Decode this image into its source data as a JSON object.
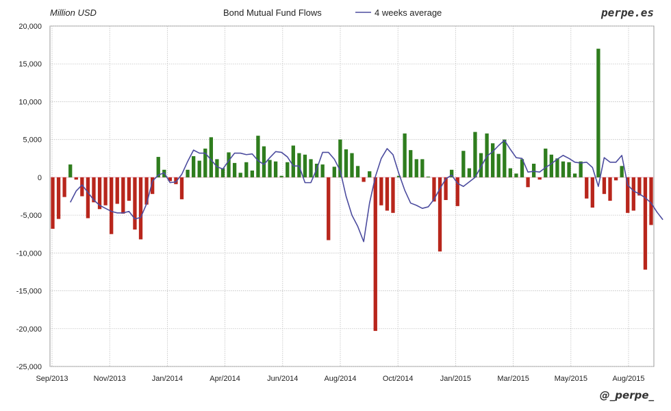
{
  "header": {
    "unit_label": "Million USD",
    "title": "Bond Mutual Fund Flows",
    "legend_label": "4 weeks average",
    "brand": "perpe.es",
    "handle": "@_perpe_"
  },
  "colors": {
    "positive": "#2f7d1e",
    "negative": "#b8261c",
    "line": "#4b4b9e",
    "grid": "#bfbfbf"
  },
  "chart_data": {
    "type": "bar",
    "title": "Bond Mutual Fund Flows",
    "ylabel": "Million USD",
    "ylim": [
      -25000,
      20000
    ],
    "y_ticks": [
      "20,000",
      "15,000",
      "10,000",
      "5,000",
      "0",
      "-5,000",
      "-10,000",
      "-15,000",
      "-20,000",
      "-25,000"
    ],
    "x_ticks": [
      "Sep/2013",
      "Nov/2013",
      "Jan/2014",
      "Apr/2014",
      "Jun/2014",
      "Aug/2014",
      "Oct/2014",
      "Jan/2015",
      "Mar/2015",
      "May/2015",
      "Aug/2015"
    ],
    "grid": true,
    "legend": "top",
    "series": [
      {
        "name": "Bond Mutual Fund Flows",
        "type": "bar",
        "values": [
          -6800,
          -5500,
          -2600,
          1700,
          -300,
          -2500,
          -5400,
          -3300,
          -4200,
          -3700,
          -7500,
          -3500,
          -4800,
          -3100,
          -6900,
          -8200,
          -3600,
          -2200,
          2700,
          1000,
          -500,
          -900,
          -2900,
          1000,
          2800,
          2200,
          3800,
          5300,
          2400,
          1200,
          3300,
          1900,
          600,
          2000,
          900,
          5500,
          4100,
          2300,
          2100,
          200,
          2000,
          4200,
          3200,
          3000,
          2400,
          1800,
          1700,
          -8300,
          1400,
          5000,
          3700,
          3200,
          1500,
          -600,
          800,
          -20300,
          -3700,
          -4400,
          -4700,
          200,
          5800,
          3600,
          2400,
          2400,
          100,
          -3200,
          -9800,
          -3000,
          1000,
          -3800,
          3500,
          1200,
          6000,
          3200,
          5800,
          4500,
          3100,
          5000,
          1200,
          500,
          2400,
          -1300,
          1800,
          -300,
          3800,
          3000,
          2500,
          2100,
          2000,
          500,
          2100,
          -2800,
          -4000,
          17000,
          -2200,
          -3100,
          -400,
          1500,
          -4700,
          -4400,
          -2400,
          -12200,
          -6300
        ],
        "color": "#2f7d1e"
      },
      {
        "name": "4 weeks average",
        "type": "line",
        "values": [
          -3300,
          -1800,
          -1000,
          -2000,
          -3000,
          -3700,
          -4100,
          -4500,
          -4700,
          -4700,
          -4500,
          -5500,
          -5300,
          -3500,
          -500,
          300,
          600,
          -700,
          -600,
          400,
          2100,
          3600,
          3200,
          3200,
          2300,
          1400,
          1100,
          2200,
          3200,
          3200,
          3000,
          3100,
          2200,
          1700,
          2600,
          3400,
          3300,
          2700,
          1500,
          1500,
          -700,
          -700,
          1100,
          3300,
          3300,
          2400,
          900,
          -2500,
          -5000,
          -6500,
          -8500,
          -3400,
          100,
          2500,
          3800,
          3000,
          500,
          -1700,
          -3400,
          -3700,
          -4100,
          -3900,
          -2900,
          -1500,
          -200,
          300,
          -800,
          -1200,
          -600,
          0,
          1400,
          2800,
          3400,
          4200,
          4900,
          3700,
          2600,
          2500,
          700,
          800,
          700,
          1300,
          1800,
          2400,
          2900,
          2500,
          2000,
          1900,
          2000,
          1300,
          -1200,
          2600,
          2000,
          2000,
          2900,
          -1000,
          -1800,
          -2200,
          -2700,
          -3400,
          -4600,
          -5600
        ],
        "color": "#4b4b9e"
      }
    ]
  }
}
